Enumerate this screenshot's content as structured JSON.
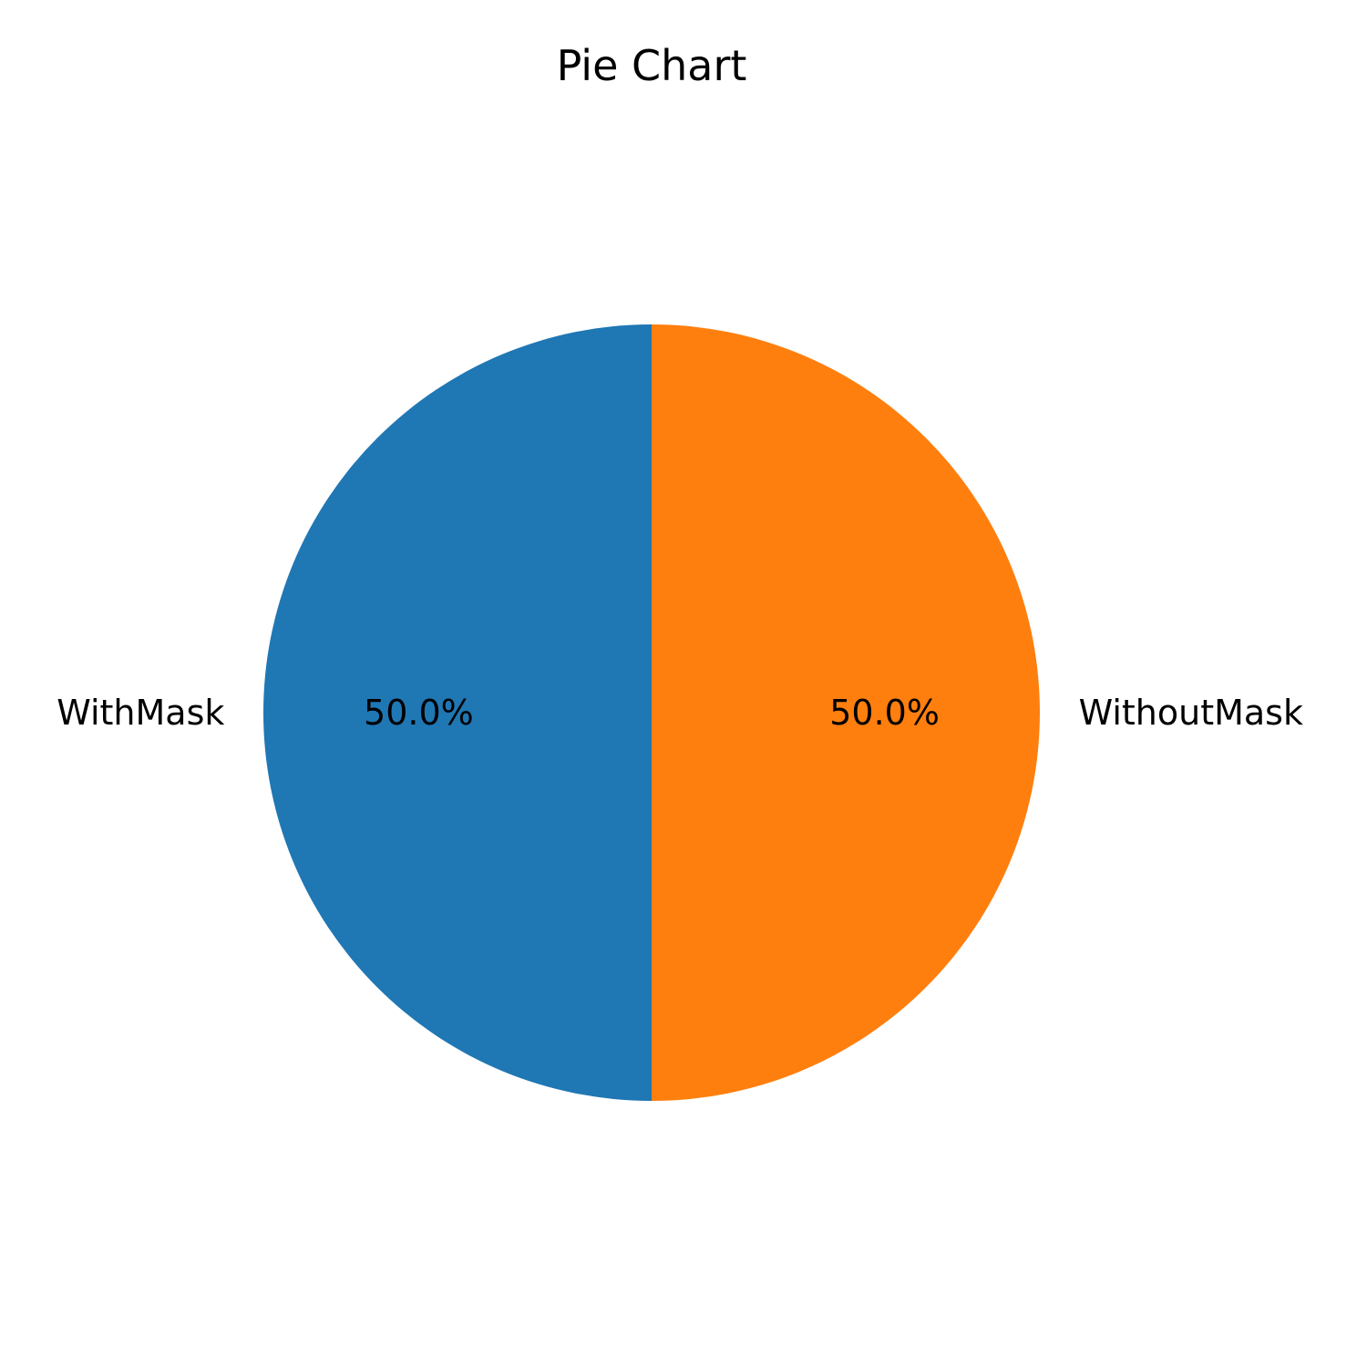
{
  "chart_data": {
    "type": "pie",
    "title": "Pie Chart",
    "start_angle_deg": 90,
    "direction": "counterclockwise",
    "slices": [
      {
        "label": "WithMask",
        "value": 50.0,
        "percent_label": "50.0%",
        "color": "#1f77b4"
      },
      {
        "label": "WithoutMask",
        "value": 50.0,
        "percent_label": "50.0%",
        "color": "#ff7f0e"
      }
    ]
  }
}
